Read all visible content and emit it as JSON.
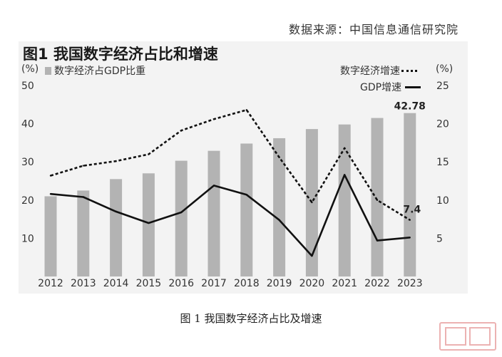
{
  "header": {
    "source_text": "数据来源：中国信息通信研究院"
  },
  "figure": {
    "title": "图1 我国数字经济占比和增速",
    "left_unit": "(%)",
    "bar_legend": "数字经济占GDP比重",
    "line_legend_digital": "数字经济增速",
    "right_unit": "(%)",
    "line_legend_gdp": "GDP增速"
  },
  "caption": "图 1 我国数字经济占比及增速",
  "colors": {
    "bars": "#b3b3b3",
    "lines": "#111111",
    "background": "#f3f3f3"
  },
  "chart_data": {
    "type": "bar",
    "categories": [
      "2012",
      "2013",
      "2014",
      "2015",
      "2016",
      "2017",
      "2018",
      "2019",
      "2020",
      "2021",
      "2022",
      "2023"
    ],
    "series": [
      {
        "name": "数字经济占GDP比重",
        "axis": "left",
        "type": "bar",
        "values": [
          21.0,
          22.5,
          25.5,
          27.0,
          30.3,
          32.9,
          34.8,
          36.2,
          38.6,
          39.8,
          41.5,
          42.78
        ]
      },
      {
        "name": "数字经济增速",
        "axis": "right",
        "type": "line",
        "style": "dotted",
        "values": [
          13.2,
          14.5,
          15.1,
          16.0,
          19.1,
          20.6,
          21.8,
          15.6,
          9.7,
          16.8,
          10.0,
          7.4
        ]
      },
      {
        "name": "GDP增速",
        "axis": "right",
        "type": "line",
        "style": "solid",
        "values": [
          10.8,
          10.4,
          8.5,
          7.0,
          8.4,
          11.9,
          10.7,
          7.4,
          2.7,
          13.3,
          4.7,
          5.1
        ]
      }
    ],
    "left_axis": {
      "ylim": [
        0,
        50
      ],
      "ticks": [
        "10",
        "20",
        "30",
        "40",
        "50"
      ]
    },
    "right_axis": {
      "ylim": [
        0,
        25
      ],
      "ticks": [
        "5",
        "10",
        "15",
        "20",
        "25"
      ]
    },
    "annotations": [
      "42.78",
      "7.4"
    ],
    "grid": false,
    "legend_placement": "top"
  }
}
